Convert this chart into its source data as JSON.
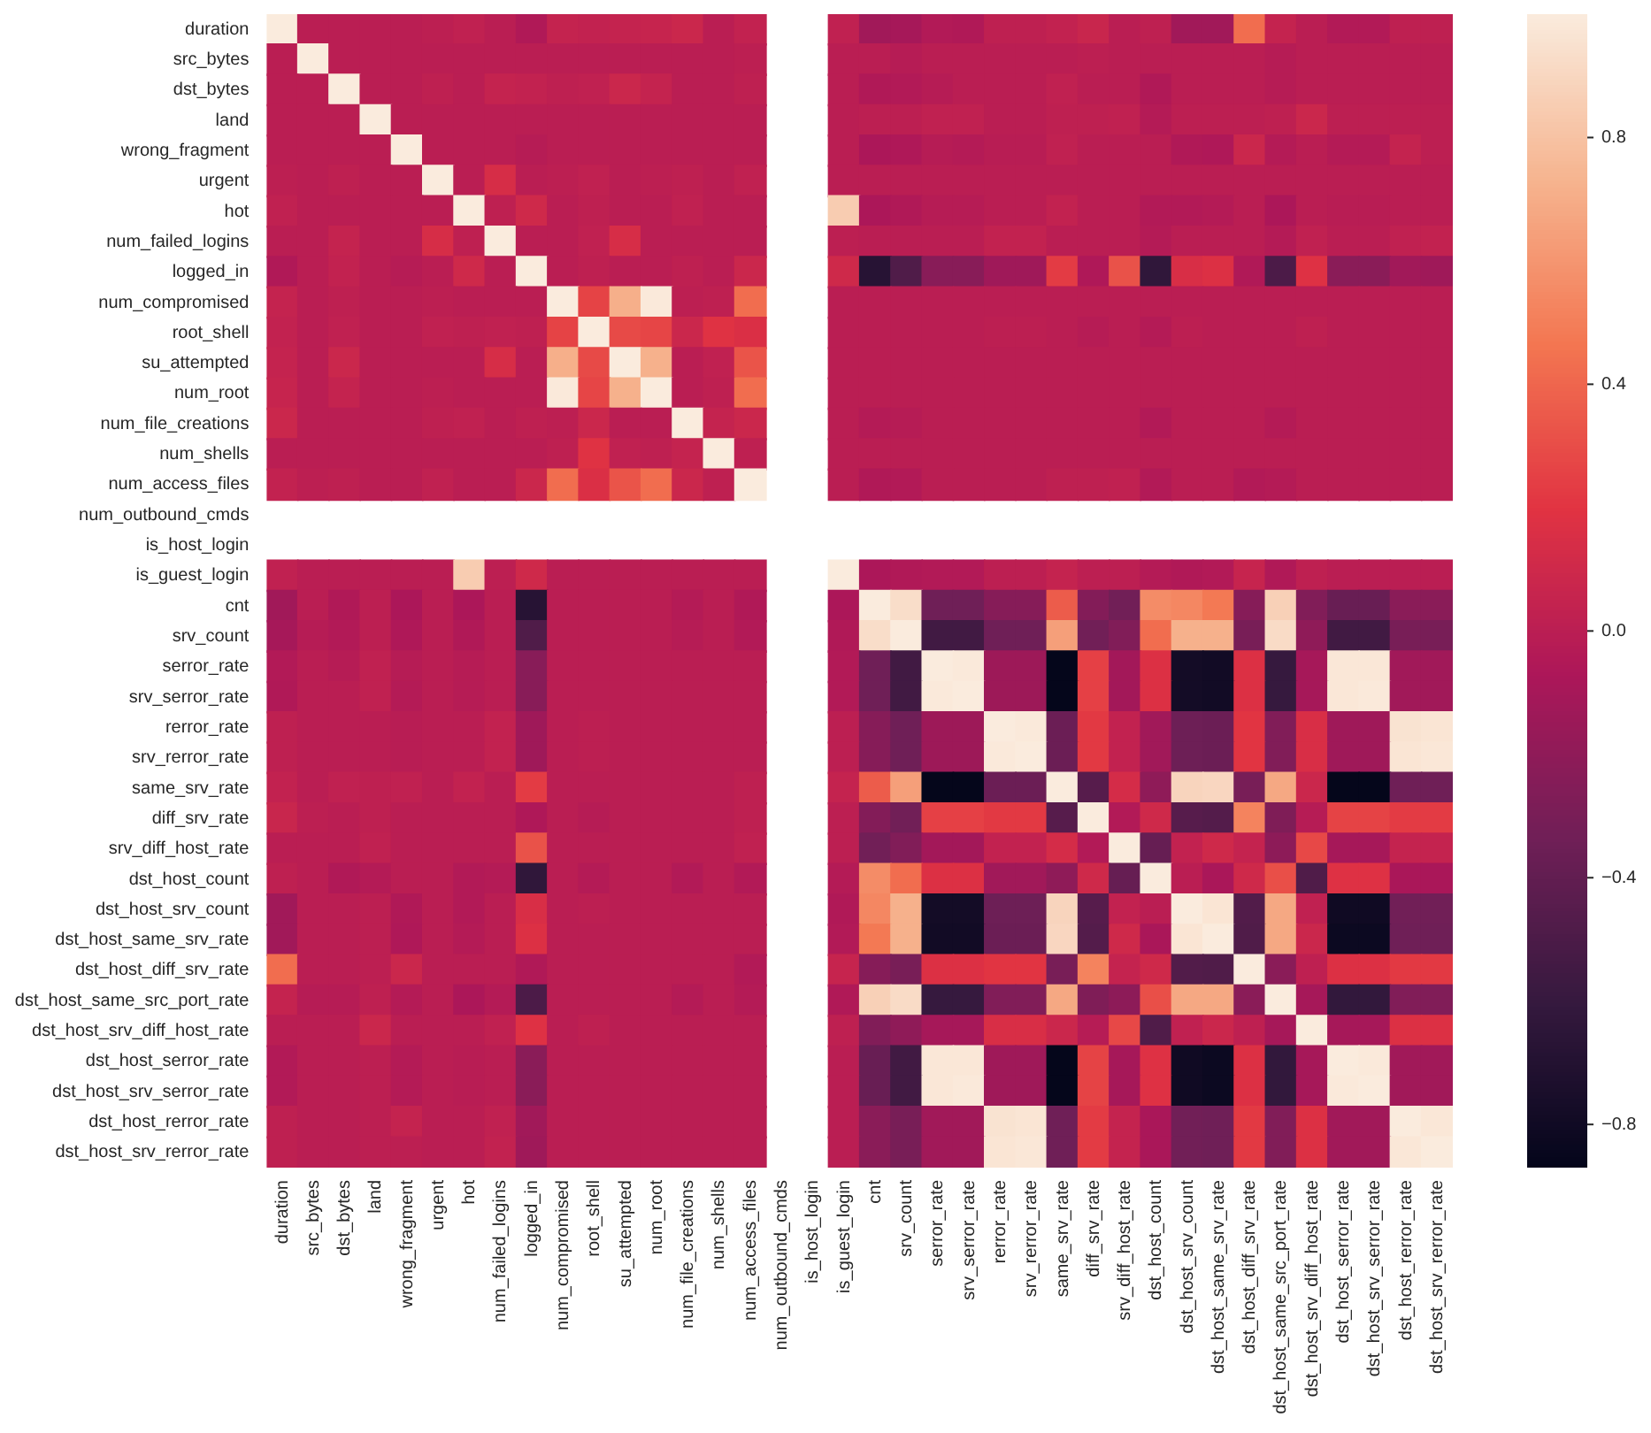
{
  "chart_data": {
    "type": "heatmap",
    "categories": [
      "duration",
      "src_bytes",
      "dst_bytes",
      "land",
      "wrong_fragment",
      "urgent",
      "hot",
      "num_failed_logins",
      "logged_in",
      "num_compromised",
      "root_shell",
      "su_attempted",
      "num_root",
      "num_file_creations",
      "num_shells",
      "num_access_files",
      "num_outbound_cmds",
      "is_host_login",
      "is_guest_login",
      "cnt",
      "srv_count",
      "serror_rate",
      "srv_serror_rate",
      "rerror_rate",
      "srv_rerror_rate",
      "same_srv_rate",
      "diff_srv_rate",
      "srv_diff_host_rate",
      "dst_host_count",
      "dst_host_srv_count",
      "dst_host_same_srv_rate",
      "dst_host_diff_srv_rate",
      "dst_host_same_src_port_rate",
      "dst_host_srv_diff_host_rate",
      "dst_host_serror_rate",
      "dst_host_srv_serror_rate",
      "dst_host_rerror_rate",
      "dst_host_srv_rerror_rate"
    ],
    "y_categories": [
      "duration",
      "src_bytes",
      "dst_bytes",
      "land",
      "wrong_fragment",
      "urgent",
      "hot",
      "num_failed_logins",
      "logged_in",
      "num_compromised",
      "root_shell",
      "su_attempted",
      "num_root",
      "num_file_creations",
      "num_shells",
      "num_access_files",
      "num_outbound_cmds",
      "is_host_login",
      "is_guest_login",
      "cnt",
      "srv_count",
      "serror_rate",
      "srv_serror_rate",
      "rerror_rate",
      "srv_rerror_rate",
      "same_srv_rate",
      "diff_srv_rate",
      "srv_diff_host_rate",
      "dst_host_count",
      "dst_host_srv_count",
      "dst_host_same_srv_rate",
      "dst_host_diff_srv_rate",
      "dst_host_same_src_port_rate",
      "dst_host_srv_diff_host_rate",
      "dst_host_serror_rate",
      "dst_host_srv_serror_rate",
      "dst_host_rerror_rate",
      "dst_host_srv_rerror_rate"
    ],
    "cells": [
      [
        1,
        0,
        0,
        0,
        0,
        0.01,
        0.03,
        0,
        -0.05,
        0.05,
        0.04,
        0.05,
        0.06,
        0.08,
        0,
        0.04,
        null,
        null,
        0.03,
        -0.12,
        -0.1,
        -0.04,
        -0.05,
        0.02,
        0.02,
        0.04,
        0.07,
        0,
        0.02,
        -0.12,
        -0.12,
        0.43,
        0.05,
        0,
        -0.04,
        -0.04,
        0.02,
        0.02
      ],
      [
        0,
        1,
        0,
        0,
        0,
        0,
        0,
        0,
        0,
        0,
        0,
        0,
        0,
        0,
        0,
        0.01,
        null,
        null,
        0,
        0,
        -0.02,
        0,
        0,
        0,
        0,
        0,
        0.01,
        0,
        0,
        0,
        0,
        0,
        -0.02,
        0,
        0,
        0,
        0,
        0
      ],
      [
        0,
        0,
        1,
        0,
        0,
        0.02,
        0,
        0.05,
        0.04,
        0.02,
        0.03,
        0.08,
        0.05,
        0,
        0,
        0.02,
        null,
        null,
        0,
        -0.05,
        -0.04,
        -0.02,
        0,
        0,
        0,
        0.03,
        0,
        0,
        -0.05,
        0,
        0,
        0,
        -0.02,
        0,
        0,
        0,
        0,
        0
      ],
      [
        0,
        0,
        0,
        1,
        0,
        0,
        0,
        0,
        0,
        0,
        0,
        0,
        0,
        0,
        0,
        0,
        null,
        null,
        0,
        0.01,
        0.01,
        0.03,
        0.03,
        0,
        0,
        0.02,
        0.02,
        0.03,
        -0.03,
        0.01,
        0.01,
        0.01,
        0.02,
        0.08,
        0.01,
        0.01,
        0.01,
        0.01
      ],
      [
        0,
        0,
        0,
        0,
        1,
        0,
        0,
        0,
        -0.02,
        0,
        0,
        0,
        0,
        0,
        0,
        0,
        null,
        null,
        0,
        -0.07,
        -0.06,
        -0.02,
        -0.03,
        -0.01,
        -0.01,
        0.03,
        0,
        0,
        0,
        -0.05,
        -0.06,
        0.08,
        -0.03,
        0,
        -0.03,
        -0.03,
        0.05,
        0.01
      ],
      [
        0.01,
        0,
        0.02,
        0,
        0,
        1,
        0,
        0.14,
        0,
        0.01,
        0.03,
        0,
        0.01,
        0.02,
        0,
        0.03,
        null,
        null,
        0,
        0,
        0,
        0,
        0,
        0,
        0,
        0,
        0,
        0,
        0,
        0,
        0,
        0,
        0,
        0,
        0,
        0,
        0,
        0
      ],
      [
        0.03,
        0,
        0,
        0,
        0,
        0,
        1,
        0.02,
        0.1,
        0,
        0.02,
        0,
        0,
        0.03,
        0,
        0,
        null,
        null,
        0.85,
        -0.07,
        -0.05,
        -0.02,
        -0.02,
        0,
        0,
        0.04,
        0,
        0,
        -0.04,
        -0.04,
        -0.03,
        0,
        -0.07,
        0,
        -0.01,
        -0.01,
        0,
        0
      ],
      [
        0,
        0,
        0.05,
        0,
        0,
        0.14,
        0.02,
        1,
        0,
        0,
        0.03,
        0.14,
        0,
        0,
        0,
        0,
        null,
        null,
        0.01,
        0,
        0,
        0,
        0,
        0.04,
        0.04,
        0,
        0,
        0,
        -0.03,
        0,
        0,
        0,
        -0.03,
        0.03,
        0,
        0,
        0.03,
        0.04
      ],
      [
        -0.05,
        0,
        0.04,
        0,
        -0.02,
        0,
        0.1,
        0,
        1,
        0,
        0.02,
        0,
        0,
        0.02,
        0,
        0.08,
        null,
        null,
        0.1,
        -0.68,
        -0.48,
        -0.23,
        -0.23,
        -0.13,
        -0.13,
        0.23,
        -0.06,
        0.32,
        -0.63,
        0.15,
        0.17,
        -0.05,
        -0.5,
        0.18,
        -0.22,
        -0.22,
        -0.12,
        -0.13
      ],
      [
        0.05,
        0,
        0.02,
        0,
        0,
        0.01,
        0,
        0,
        0,
        1,
        0.26,
        0.71,
        0.99,
        0.01,
        0.02,
        0.43,
        null,
        null,
        0,
        0,
        0,
        0,
        0,
        0,
        0,
        0,
        0,
        0,
        0,
        0,
        0,
        0,
        0,
        0,
        0,
        0,
        0,
        0
      ],
      [
        0.04,
        0,
        0.03,
        0,
        0,
        0.03,
        0.02,
        0.03,
        0.02,
        0.26,
        1,
        0.29,
        0.27,
        0.08,
        0.19,
        0.16,
        null,
        null,
        0,
        0,
        0,
        0,
        0,
        0.01,
        0.01,
        0,
        -0.02,
        0,
        -0.03,
        0.01,
        0,
        0,
        0,
        0.02,
        0,
        0,
        0,
        0
      ],
      [
        0.05,
        0,
        0.08,
        0,
        0,
        0,
        0,
        0.14,
        0,
        0.71,
        0.29,
        1,
        0.72,
        0,
        0.03,
        0.33,
        null,
        null,
        0,
        0,
        0,
        0,
        0,
        0,
        0,
        0,
        0,
        0,
        0,
        0,
        0,
        0,
        0,
        0,
        0,
        0,
        0,
        0
      ],
      [
        0.06,
        0,
        0.05,
        0,
        0,
        0.01,
        0,
        0,
        0,
        0.99,
        0.27,
        0.72,
        1,
        0,
        0.02,
        0.43,
        null,
        null,
        0,
        0,
        0,
        0,
        0,
        0,
        0,
        0,
        0,
        0,
        0,
        0,
        0,
        0,
        0,
        0,
        0,
        0,
        0,
        0
      ],
      [
        0.08,
        0,
        0,
        0,
        0,
        0.02,
        0.03,
        0,
        0.02,
        0.01,
        0.08,
        0,
        0,
        1,
        0.05,
        0.08,
        null,
        null,
        0,
        -0.03,
        -0.02,
        0,
        0,
        0,
        0,
        0,
        0,
        0,
        -0.04,
        0,
        0,
        0,
        -0.03,
        0,
        0,
        0,
        0,
        0
      ],
      [
        0,
        0,
        0,
        0,
        0,
        0,
        0,
        0,
        0,
        0.02,
        0.19,
        0.03,
        0.02,
        0.05,
        1,
        0.02,
        null,
        null,
        0,
        0,
        0,
        0,
        0,
        0,
        0,
        0,
        0,
        0,
        0,
        0,
        0,
        0,
        0,
        0,
        0,
        0,
        0,
        0
      ],
      [
        0.04,
        0.01,
        0.02,
        0,
        0,
        0.03,
        0,
        0,
        0.08,
        0.43,
        0.16,
        0.33,
        0.43,
        0.08,
        0.02,
        1,
        null,
        null,
        0,
        -0.05,
        -0.04,
        0,
        0,
        0,
        0,
        0.02,
        0.02,
        0.03,
        -0.04,
        0,
        0,
        -0.04,
        -0.03,
        0,
        0,
        0,
        0,
        0
      ],
      [
        null,
        null,
        null,
        null,
        null,
        null,
        null,
        null,
        null,
        null,
        null,
        null,
        null,
        null,
        null,
        null,
        null,
        null,
        null,
        null,
        null,
        null,
        null,
        null,
        null,
        null,
        null,
        null,
        null,
        null,
        null,
        null,
        null,
        null,
        null,
        null,
        null,
        null
      ],
      [
        null,
        null,
        null,
        null,
        null,
        null,
        null,
        null,
        null,
        null,
        null,
        null,
        null,
        null,
        null,
        null,
        null,
        null,
        null,
        null,
        null,
        null,
        null,
        null,
        null,
        null,
        null,
        null,
        null,
        null,
        null,
        null,
        null,
        null,
        null,
        null,
        null,
        null
      ],
      [
        0.03,
        0,
        0,
        0,
        0,
        0,
        0.85,
        0.01,
        0.1,
        0,
        0,
        0,
        0,
        0,
        0,
        0,
        null,
        null,
        1,
        -0.07,
        -0.05,
        -0.04,
        -0.04,
        0.01,
        0.01,
        0.05,
        0.01,
        0.01,
        -0.03,
        -0.05,
        -0.04,
        0.06,
        -0.05,
        0.02,
        0,
        0,
        0,
        0
      ],
      [
        -0.12,
        0,
        -0.05,
        0.01,
        -0.07,
        0,
        -0.07,
        0,
        -0.68,
        0,
        0,
        0,
        0,
        -0.03,
        0,
        -0.05,
        null,
        null,
        -0.07,
        1,
        0.93,
        -0.34,
        -0.34,
        -0.24,
        -0.24,
        0.36,
        -0.25,
        -0.33,
        0.56,
        0.54,
        0.48,
        -0.24,
        0.87,
        -0.26,
        -0.37,
        -0.37,
        -0.22,
        -0.22
      ],
      [
        -0.1,
        -0.02,
        -0.04,
        0.01,
        -0.06,
        0,
        -0.05,
        0,
        -0.48,
        0,
        0,
        0,
        0,
        -0.02,
        0,
        -0.04,
        null,
        null,
        -0.05,
        0.93,
        1,
        -0.55,
        -0.55,
        -0.34,
        -0.34,
        0.64,
        -0.33,
        -0.26,
        0.43,
        0.72,
        0.72,
        -0.3,
        0.92,
        -0.2,
        -0.55,
        -0.55,
        -0.3,
        -0.3
      ],
      [
        -0.04,
        0,
        -0.02,
        0.03,
        -0.02,
        0,
        -0.02,
        0,
        -0.23,
        0,
        0,
        0,
        0,
        0,
        0,
        0,
        null,
        null,
        -0.04,
        -0.34,
        -0.55,
        1,
        0.99,
        -0.14,
        -0.14,
        -0.86,
        0.25,
        -0.11,
        0.17,
        -0.78,
        -0.79,
        0.17,
        -0.6,
        -0.1,
        0.98,
        0.98,
        -0.12,
        -0.12
      ],
      [
        -0.05,
        0,
        0,
        0.03,
        -0.03,
        0,
        -0.02,
        0,
        -0.23,
        0,
        0,
        0,
        0,
        0,
        0,
        0,
        null,
        null,
        -0.04,
        -0.34,
        -0.55,
        0.99,
        1,
        -0.14,
        -0.14,
        -0.86,
        0.25,
        -0.11,
        0.17,
        -0.78,
        -0.79,
        0.17,
        -0.6,
        -0.1,
        0.98,
        0.99,
        -0.12,
        -0.12
      ],
      [
        0.02,
        0,
        0,
        0,
        -0.01,
        0,
        0,
        0.04,
        -0.13,
        0,
        0.01,
        0,
        0,
        0,
        0,
        0,
        null,
        null,
        0.01,
        -0.24,
        -0.34,
        -0.14,
        -0.14,
        1,
        0.99,
        -0.36,
        0.22,
        0.04,
        -0.12,
        -0.35,
        -0.36,
        0.2,
        -0.26,
        0.15,
        -0.13,
        -0.13,
        0.96,
        0.97
      ],
      [
        0.02,
        0,
        0,
        0,
        -0.01,
        0,
        0,
        0.04,
        -0.13,
        0,
        0.01,
        0,
        0,
        0,
        0,
        0,
        null,
        null,
        0.01,
        -0.24,
        -0.34,
        -0.14,
        -0.14,
        0.99,
        1,
        -0.36,
        0.22,
        0.04,
        -0.12,
        -0.35,
        -0.36,
        0.2,
        -0.26,
        0.15,
        -0.13,
        -0.13,
        0.97,
        0.98
      ],
      [
        0.04,
        0,
        0.03,
        0.02,
        0.03,
        0,
        0.04,
        0,
        0.23,
        0,
        0,
        0,
        0,
        0,
        0,
        0.02,
        null,
        null,
        0.05,
        0.36,
        0.64,
        -0.86,
        -0.86,
        -0.36,
        -0.36,
        1,
        -0.45,
        0.13,
        -0.2,
        0.89,
        0.9,
        -0.3,
        0.68,
        0.08,
        -0.86,
        -0.86,
        -0.34,
        -0.34
      ],
      [
        0.07,
        0.01,
        0,
        0.02,
        0,
        0,
        0,
        0,
        -0.06,
        0,
        -0.02,
        0,
        0,
        0,
        0,
        0.02,
        null,
        null,
        0.01,
        -0.25,
        -0.33,
        0.25,
        0.25,
        0.22,
        0.22,
        -0.45,
        1,
        -0.04,
        0.1,
        -0.45,
        -0.46,
        0.52,
        -0.27,
        -0.02,
        0.26,
        0.26,
        0.23,
        0.23
      ],
      [
        0,
        0,
        0,
        0.03,
        0,
        0,
        0,
        0,
        0.32,
        0,
        0,
        0,
        0,
        0,
        0,
        0.03,
        null,
        null,
        0.01,
        -0.33,
        -0.26,
        -0.11,
        -0.11,
        0.04,
        0.04,
        0.13,
        -0.04,
        1,
        -0.38,
        0.04,
        0.1,
        0.05,
        -0.21,
        0.28,
        -0.1,
        -0.1,
        0.05,
        0.05
      ],
      [
        0.02,
        0,
        -0.05,
        -0.03,
        0,
        0,
        -0.04,
        -0.03,
        -0.63,
        0,
        -0.03,
        0,
        0,
        -0.04,
        0,
        -0.04,
        null,
        null,
        -0.03,
        0.56,
        0.43,
        0.17,
        0.17,
        -0.12,
        -0.12,
        -0.2,
        0.1,
        -0.38,
        1,
        0,
        -0.08,
        0.1,
        0.31,
        -0.48,
        0.18,
        0.18,
        -0.08,
        -0.08
      ],
      [
        -0.12,
        0,
        0,
        0.01,
        -0.05,
        0,
        -0.04,
        0,
        0.15,
        0,
        0.01,
        0,
        0,
        0,
        0,
        0,
        null,
        null,
        -0.05,
        0.54,
        0.72,
        -0.78,
        -0.78,
        -0.35,
        -0.35,
        0.89,
        -0.45,
        0.04,
        0,
        1,
        0.97,
        -0.47,
        0.68,
        0.03,
        -0.8,
        -0.8,
        -0.33,
        -0.33
      ],
      [
        -0.12,
        0,
        0,
        0.01,
        -0.06,
        0,
        -0.03,
        0,
        0.17,
        0,
        0,
        0,
        0,
        0,
        0,
        0,
        null,
        null,
        -0.04,
        0.48,
        0.72,
        -0.79,
        -0.79,
        -0.36,
        -0.36,
        0.9,
        -0.46,
        0.1,
        -0.08,
        0.97,
        1,
        -0.48,
        0.68,
        0.08,
        -0.82,
        -0.82,
        -0.34,
        -0.34
      ],
      [
        0.43,
        0,
        0,
        0.01,
        0.08,
        0,
        0,
        0,
        -0.05,
        0,
        0,
        0,
        0,
        0,
        0,
        -0.04,
        null,
        null,
        0.06,
        -0.24,
        -0.3,
        0.17,
        0.17,
        0.2,
        0.2,
        -0.3,
        0.52,
        0.05,
        0.1,
        -0.47,
        -0.48,
        1,
        -0.22,
        0.02,
        0.17,
        0.17,
        0.22,
        0.22
      ],
      [
        0.05,
        -0.02,
        -0.02,
        0.02,
        -0.03,
        0,
        -0.07,
        -0.03,
        -0.5,
        0,
        0,
        0,
        0,
        -0.03,
        0,
        -0.03,
        null,
        null,
        -0.05,
        0.87,
        0.92,
        -0.6,
        -0.6,
        -0.26,
        -0.26,
        0.68,
        -0.27,
        -0.21,
        0.31,
        0.68,
        0.68,
        -0.22,
        1,
        -0.1,
        -0.62,
        -0.62,
        -0.26,
        -0.26
      ],
      [
        0,
        0,
        0,
        0.08,
        0,
        0,
        0,
        0.03,
        0.18,
        0,
        0.02,
        0,
        0,
        0,
        0,
        0,
        null,
        null,
        0.02,
        -0.26,
        -0.2,
        -0.1,
        -0.1,
        0.15,
        0.15,
        0.08,
        -0.02,
        0.28,
        -0.48,
        0.03,
        0.08,
        0.02,
        -0.1,
        1,
        -0.1,
        -0.1,
        0.17,
        0.17
      ],
      [
        -0.04,
        0,
        0,
        0.01,
        -0.03,
        0,
        -0.01,
        0,
        -0.22,
        0,
        0,
        0,
        0,
        0,
        0,
        0,
        null,
        null,
        0,
        -0.37,
        -0.55,
        0.98,
        0.98,
        -0.13,
        -0.13,
        -0.86,
        0.26,
        -0.1,
        0.18,
        -0.8,
        -0.82,
        0.17,
        -0.62,
        -0.1,
        1,
        0.99,
        -0.12,
        -0.12
      ],
      [
        -0.04,
        0,
        0,
        0.01,
        -0.03,
        0,
        -0.01,
        0,
        -0.22,
        0,
        0,
        0,
        0,
        0,
        0,
        0,
        null,
        null,
        0,
        -0.37,
        -0.55,
        0.98,
        0.99,
        -0.13,
        -0.13,
        -0.86,
        0.26,
        -0.1,
        0.18,
        -0.8,
        -0.82,
        0.17,
        -0.62,
        -0.1,
        0.99,
        1,
        -0.12,
        -0.12
      ],
      [
        0.02,
        0,
        0,
        0.01,
        0.05,
        0,
        0,
        0.03,
        -0.12,
        0,
        0,
        0,
        0,
        0,
        0,
        0,
        null,
        null,
        0,
        -0.22,
        -0.3,
        -0.12,
        -0.12,
        0.96,
        0.97,
        -0.34,
        0.23,
        0.05,
        -0.08,
        -0.33,
        -0.34,
        0.22,
        -0.26,
        0.17,
        -0.12,
        -0.12,
        1,
        0.98
      ],
      [
        0.02,
        0,
        0,
        0.01,
        0.01,
        0,
        0,
        0.04,
        -0.13,
        0,
        0,
        0,
        0,
        0,
        0,
        0,
        null,
        null,
        0,
        -0.22,
        -0.3,
        -0.12,
        -0.12,
        0.97,
        0.98,
        -0.34,
        0.23,
        0.05,
        -0.08,
        -0.33,
        -0.34,
        0.22,
        -0.26,
        0.17,
        -0.12,
        -0.12,
        0.98,
        1
      ]
    ],
    "clim": [
      -0.87,
      1.0
    ],
    "cticks": [
      {
        "value": -0.8,
        "label": "−0.8"
      },
      {
        "value": -0.4,
        "label": "−0.4"
      },
      {
        "value": 0,
        "label": "0.0"
      },
      0.4,
      0.8
    ]
  }
}
